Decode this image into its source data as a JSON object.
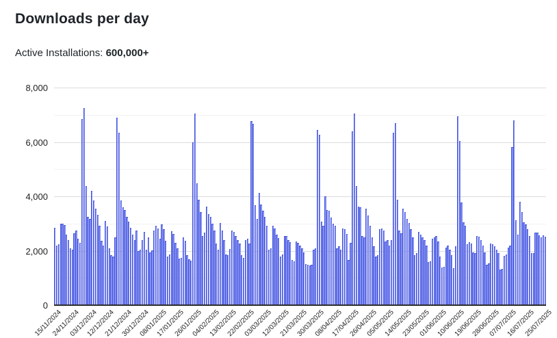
{
  "page": {
    "title": "Downloads per day",
    "subtitle_label": "Active Installations:",
    "subtitle_value": "600,000+"
  },
  "colors": {
    "bar_fill": "#8690f0",
    "bar_border": "#4254de",
    "grid_major": "#dcdcdc",
    "grid_minor": "#f2f2f2",
    "axis_baseline": "#2b2b2b",
    "text": "#1e1e1e"
  },
  "chart_data": {
    "type": "bar",
    "title": "Downloads per day",
    "xlabel": "",
    "ylabel": "",
    "ylim": [
      0,
      8000
    ],
    "ytick_step": 2000,
    "minor_grid_step": 1000,
    "grid": "horizontal",
    "legend": "none",
    "ytick_labels": [
      "0",
      "2,000",
      "4,000",
      "6,000",
      "8,000"
    ],
    "x_start_date": "15/11/2024",
    "x_end_date": "25/07/2025",
    "x_interval_days": 1,
    "xtick_every_bars": 9,
    "xtick_labels": [
      "15/11/2024",
      "24/11/2024",
      "03/12/2024",
      "12/12/2024",
      "21/12/2024",
      "30/12/2024",
      "08/01/2025",
      "17/01/2025",
      "26/01/2025",
      "04/02/2025",
      "13/02/2025",
      "22/02/2025",
      "03/03/2025",
      "12/03/2025",
      "21/03/2025",
      "30/03/2025",
      "08/04/2025",
      "17/04/2025",
      "26/04/2025",
      "05/05/2025",
      "14/05/2025",
      "23/05/2025",
      "01/06/2025",
      "10/06/2025",
      "19/06/2025",
      "28/06/2025",
      "07/07/2025",
      "16/07/2025",
      "25/07/2025"
    ],
    "values": [
      2850,
      2200,
      2250,
      3000,
      3000,
      2950,
      2600,
      2400,
      2100,
      2050,
      2650,
      2750,
      2450,
      2300,
      6850,
      7250,
      4380,
      3250,
      3180,
      4200,
      3840,
      3550,
      3320,
      2920,
      2370,
      2200,
      3100,
      2890,
      2080,
      1830,
      1790,
      2500,
      6900,
      6350,
      3860,
      3590,
      3490,
      3250,
      3070,
      2850,
      2580,
      2400,
      2750,
      2000,
      2040,
      2400,
      2680,
      2040,
      2500,
      1950,
      2010,
      2750,
      2920,
      2810,
      2430,
      2960,
      2790,
      2370,
      1790,
      1870,
      2720,
      2620,
      2290,
      2080,
      1700,
      1730,
      2480,
      2370,
      1830,
      1680,
      1640,
      5980,
      7040,
      4470,
      3880,
      3420,
      2540,
      2660,
      3630,
      3340,
      3250,
      3000,
      2750,
      2260,
      2040,
      3020,
      2750,
      2400,
      1870,
      1830,
      2060,
      2750,
      2680,
      2540,
      2400,
      2260,
      1840,
      1740,
      2400,
      2450,
      2260,
      6770,
      6670,
      3670,
      3180,
      4120,
      3690,
      3460,
      3250,
      2930,
      2040,
      2080,
      2920,
      2830,
      2580,
      2460,
      1790,
      1870,
      2540,
      2540,
      2400,
      2310,
      1660,
      1620,
      2330,
      2290,
      2180,
      2100,
      1950,
      1500,
      1480,
      1450,
      1490,
      2040,
      2080,
      6450,
      6270,
      3080,
      2920,
      4010,
      3500,
      3460,
      3210,
      3000,
      2930,
      2080,
      2160,
      2040,
      2830,
      2790,
      2620,
      1660,
      2290,
      6400,
      7040,
      4380,
      3630,
      3590,
      2540,
      2500,
      3540,
      3290,
      2920,
      2500,
      2160,
      1790,
      1830,
      2790,
      2830,
      2730,
      2330,
      2400,
      2180,
      2400,
      6340,
      6690,
      3880,
      2750,
      2650,
      3550,
      3420,
      3170,
      3020,
      2790,
      2500,
      1830,
      1910,
      2680,
      2580,
      2500,
      2400,
      2180,
      1580,
      1620,
      2430,
      2480,
      2540,
      2330,
      1790,
      1390,
      1410,
      2120,
      2180,
      2040,
      1830,
      1370,
      2160,
      6950,
      6030,
      3770,
      3040,
      2920,
      2250,
      2310,
      2260,
      1950,
      1910,
      2540,
      2520,
      2400,
      2200,
      1950,
      1490,
      1530,
      2260,
      2230,
      2160,
      2040,
      1910,
      1310,
      1330,
      1800,
      1850,
      2120,
      2180,
      5810,
      6790,
      3130,
      2580,
      3800,
      3420,
      3040,
      2960,
      2790,
      2540,
      1910,
      1910,
      2660,
      2660,
      2560,
      2500,
      2560,
      2520
    ]
  }
}
